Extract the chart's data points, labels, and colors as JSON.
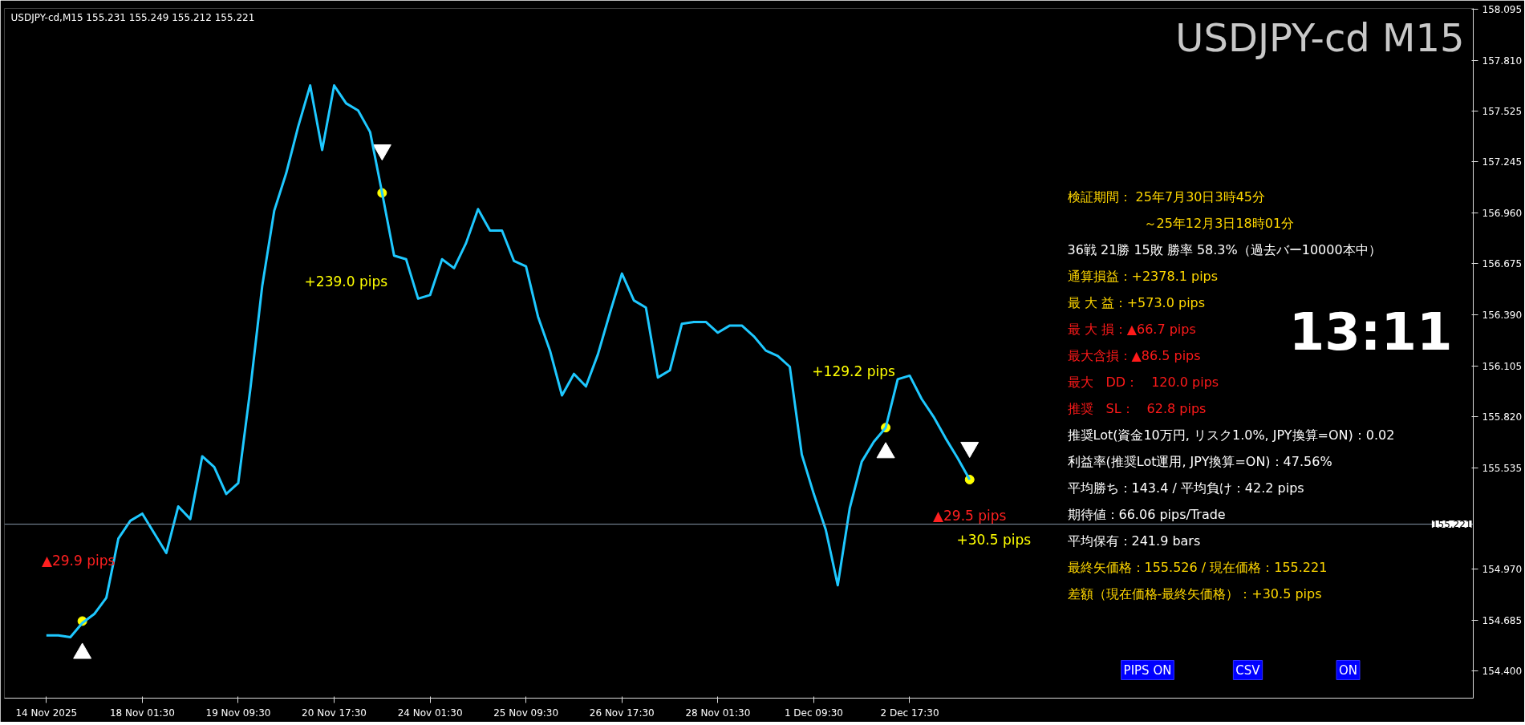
{
  "chart_data": {
    "type": "line",
    "title": "USDJPY-cd M15",
    "subtitle": "USDJPY-cd,M15  155.231 155.249 155.212 155.221",
    "categories": [
      "14 Nov 2025",
      null,
      null,
      null,
      null,
      null,
      null,
      null,
      "18 Nov 01:30",
      null,
      null,
      null,
      null,
      null,
      null,
      null,
      "19 Nov 09:30",
      null,
      null,
      null,
      null,
      null,
      null,
      null,
      "20 Nov 17:30",
      null,
      null,
      null,
      null,
      null,
      null,
      null,
      "24 Nov 01:30",
      null,
      null,
      null,
      null,
      null,
      null,
      null,
      "25 Nov 09:30",
      null,
      null,
      null,
      null,
      null,
      null,
      null,
      "26 Nov 17:30",
      null,
      null,
      null,
      null,
      null,
      null,
      null,
      "28 Nov 01:30",
      null,
      null,
      null,
      null,
      null,
      null,
      null,
      "1 Dec 09:30",
      null,
      null,
      null,
      null,
      null,
      null,
      null,
      "2 Dec 17:30",
      null,
      null,
      null,
      null,
      null,
      null,
      null,
      null,
      null,
      null,
      null,
      null,
      null,
      null,
      null,
      null,
      null,
      null,
      null,
      null,
      null,
      null,
      null,
      null,
      null,
      null,
      null,
      null,
      null,
      null,
      null,
      null,
      null,
      null,
      null,
      null,
      null,
      null,
      null,
      null,
      null,
      null,
      null,
      null,
      null,
      null,
      null
    ],
    "ylim": [
      154.25,
      158.1
    ],
    "yticks": [
      {
        "value": 154.4,
        "label": "154.400"
      },
      {
        "value": 154.685,
        "label": "154.685"
      },
      {
        "value": 154.97,
        "label": "154.970"
      },
      {
        "value": 155.535,
        "label": "155.535"
      },
      {
        "value": 155.82,
        "label": "155.820"
      },
      {
        "value": 156.105,
        "label": "156.105"
      },
      {
        "value": 156.39,
        "label": "156.390"
      },
      {
        "value": 156.675,
        "label": "156.675"
      },
      {
        "value": 156.96,
        "label": "156.960"
      },
      {
        "value": 157.245,
        "label": "157.245"
      },
      {
        "value": 157.525,
        "label": "157.525"
      },
      {
        "value": 157.81,
        "label": "157.810"
      },
      {
        "value": 158.095,
        "label": "158.095"
      }
    ],
    "grid": false,
    "ref_lines": [
      {
        "axis": "y",
        "value": 155.221,
        "label": "155.221",
        "color": "#8899aa"
      }
    ],
    "series": [
      {
        "color": "#1ec8ff",
        "values": [
          154.6,
          154.6,
          154.59,
          154.67,
          154.72,
          154.81,
          155.14,
          155.24,
          155.28,
          155.17,
          155.06,
          155.32,
          155.25,
          155.6,
          155.54,
          155.39,
          155.45,
          155.97,
          156.55,
          156.97,
          157.18,
          157.44,
          157.67,
          157.31,
          157.67,
          157.57,
          157.53,
          157.41,
          157.07,
          156.72,
          156.7,
          156.48,
          156.5,
          156.7,
          156.65,
          156.79,
          156.98,
          156.86,
          156.86,
          156.69,
          156.66,
          156.38,
          156.19,
          155.94,
          156.06,
          155.99,
          156.17,
          156.4,
          156.62,
          156.47,
          156.43,
          156.04,
          156.08,
          156.34,
          156.35,
          156.35,
          156.29,
          156.33,
          156.33,
          156.27,
          156.19,
          156.16,
          156.1,
          155.61,
          155.39,
          155.19,
          154.88,
          155.31,
          155.57,
          155.68,
          155.76,
          156.03,
          156.05,
          155.92,
          155.82,
          155.7,
          155.59,
          155.47,
          null,
          null,
          null,
          null,
          null,
          null,
          null,
          null,
          null,
          null,
          null,
          null,
          null,
          null,
          null,
          null,
          null,
          null,
          null,
          null,
          null,
          null,
          null,
          null,
          null,
          null,
          null,
          null,
          null,
          null,
          null,
          null,
          null,
          null,
          null,
          null,
          null,
          null,
          null,
          null,
          null,
          null
        ]
      },
      {
        "type": "scatter",
        "marker": "circle",
        "color": "#ffff00",
        "values": [
          null,
          null,
          null,
          154.68,
          null,
          null,
          null,
          null,
          null,
          null,
          null,
          null,
          null,
          null,
          null,
          null,
          null,
          null,
          null,
          null,
          null,
          null,
          null,
          null,
          null,
          null,
          null,
          null,
          157.07,
          null,
          null,
          null,
          null,
          null,
          null,
          null,
          null,
          null,
          null,
          null,
          null,
          null,
          null,
          null,
          null,
          null,
          null,
          null,
          null,
          null,
          null,
          null,
          null,
          null,
          null,
          null,
          null,
          null,
          null,
          null,
          null,
          null,
          null,
          null,
          null,
          null,
          null,
          null,
          null,
          null,
          155.76,
          null,
          null,
          null,
          null,
          null,
          null,
          155.47,
          null,
          null,
          null,
          null,
          null,
          null,
          null,
          null,
          null,
          null,
          null,
          null,
          null,
          null,
          null,
          null,
          null,
          null,
          null,
          null,
          null,
          null,
          null,
          null,
          null,
          null,
          null,
          null,
          null,
          null,
          null,
          null,
          null,
          null,
          null,
          null,
          null,
          null,
          null,
          null,
          null,
          null
        ]
      },
      {
        "type": "scatter",
        "marker": "triangle",
        "color": "#ffffff",
        "values": [
          null,
          null,
          null,
          154.5,
          null,
          null,
          null,
          null,
          null,
          null,
          null,
          null,
          null,
          null,
          null,
          null,
          null,
          null,
          null,
          null,
          null,
          null,
          null,
          null,
          null,
          null,
          null,
          null,
          null,
          null,
          null,
          null,
          null,
          null,
          null,
          null,
          null,
          null,
          null,
          null,
          null,
          null,
          null,
          null,
          null,
          null,
          null,
          null,
          null,
          null,
          null,
          null,
          null,
          null,
          null,
          null,
          null,
          null,
          null,
          null,
          null,
          null,
          null,
          null,
          null,
          null,
          null,
          null,
          null,
          null,
          155.62,
          null,
          null,
          null,
          null,
          null,
          null,
          null,
          null,
          null,
          null,
          null,
          null,
          null,
          null,
          null,
          null,
          null,
          null,
          null,
          null,
          null,
          null,
          null,
          null,
          null,
          null,
          null,
          null,
          null,
          null,
          null,
          null,
          null,
          null,
          null,
          null,
          null,
          null,
          null,
          null,
          null,
          null,
          null,
          null,
          null,
          null,
          null,
          null,
          null
        ]
      },
      {
        "type": "scatter",
        "marker": "triangle",
        "color": "#ffffff",
        "values": [
          null,
          null,
          null,
          null,
          null,
          null,
          null,
          null,
          null,
          null,
          null,
          null,
          null,
          null,
          null,
          null,
          null,
          null,
          null,
          null,
          null,
          null,
          null,
          null,
          null,
          null,
          null,
          null,
          157.31,
          null,
          null,
          null,
          null,
          null,
          null,
          null,
          null,
          null,
          null,
          null,
          null,
          null,
          null,
          null,
          null,
          null,
          null,
          null,
          null,
          null,
          null,
          null,
          null,
          null,
          null,
          null,
          null,
          null,
          null,
          null,
          null,
          null,
          null,
          null,
          null,
          null,
          null,
          null,
          null,
          null,
          null,
          null,
          null,
          null,
          null,
          null,
          null,
          155.65,
          null,
          null,
          null,
          null,
          null,
          null,
          null,
          null,
          null,
          null,
          null,
          null,
          null,
          null,
          null,
          null,
          null,
          null,
          null,
          null,
          null,
          null,
          null,
          null,
          null,
          null,
          null,
          null,
          null,
          null,
          null,
          null,
          null,
          null,
          null,
          null,
          null,
          null,
          null,
          null,
          null,
          null
        ]
      }
    ],
    "annotations": [
      "+239.0 pips",
      "▲29.9 pips",
      "+129.2 pips",
      "▲29.5 pips",
      "+30.5 pips",
      "検証期間： 25年7月30日3時45分",
      "～25年12月3日18時01分",
      "36戦 21勝 15敗 勝率 58.3%（過去バー10000本中）",
      "通算損益：+2378.1 pips",
      "最 大 益：+573.0 pips",
      "最 大 損：▲66.7 pips",
      "最大含損：▲86.5 pips",
      "最大　DD：　120.0 pips",
      "推奨　SL：　62.8 pips",
      "推奨Lot(資金10万円, リスク1.0%, JPY換算=ON)：0.02",
      "利益率(推奨Lot運用, JPY換算=ON)：47.56%",
      "平均勝ち：143.4 / 平均負け：42.2 pips",
      "期待値：66.06 pips/Trade",
      "平均保有：241.9 bars",
      "最終矢価格：155.526 / 現在価格：155.221",
      "差額（現在価格-最終矢価格）：+30.5 pips",
      "13:11",
      "PIPS ON",
      "CSV",
      "ON"
    ]
  }
}
